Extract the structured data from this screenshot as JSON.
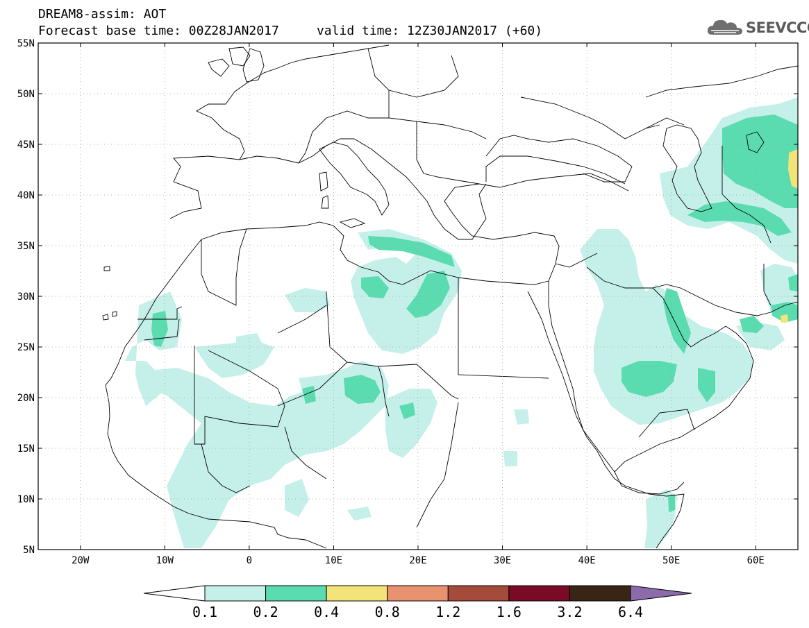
{
  "header": {
    "line1": "DREAM8-assim: AOT",
    "line2": "Forecast base time: 00Z28JAN2017     valid time: 12Z30JAN2017 (+60)"
  },
  "logo": {
    "text": "SEEVCCC",
    "icon": "cloud-icon"
  },
  "map": {
    "projection": "lat-lon",
    "lon_range": [
      -25,
      65
    ],
    "lat_range": [
      5,
      55
    ],
    "lat_labels": [
      "5N",
      "10N",
      "15N",
      "20N",
      "25N",
      "30N",
      "35N",
      "40N",
      "45N",
      "50N",
      "55N"
    ],
    "lon_labels": [
      "20W",
      "10W",
      "0",
      "10E",
      "20E",
      "30E",
      "40E",
      "50E",
      "60E"
    ],
    "lat_values": [
      5,
      10,
      15,
      20,
      25,
      30,
      35,
      40,
      45,
      50,
      55
    ],
    "lon_values": [
      -20,
      -10,
      0,
      10,
      20,
      30,
      40,
      50,
      60
    ],
    "grid": "dotted"
  },
  "colorbar": {
    "labels": [
      "0.1",
      "0.2",
      "0.4",
      "0.8",
      "1.2",
      "1.6",
      "3.2",
      "6.4"
    ],
    "colors": [
      "#ffffff",
      "#c5f0ea",
      "#5bdcb0",
      "#f3e47a",
      "#e99270",
      "#a54b3c",
      "#7a0b26",
      "#3a2416",
      "#8c6bab"
    ]
  }
}
